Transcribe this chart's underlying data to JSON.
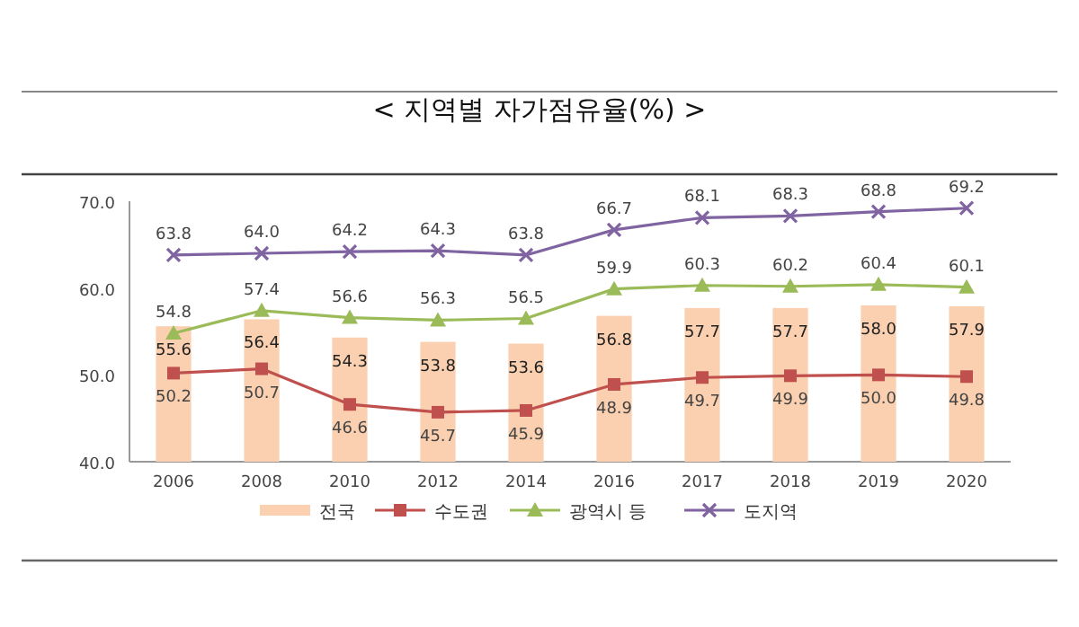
{
  "chart_data": {
    "type": "bar",
    "title": "<  지역별  자가점유율(%)  >",
    "categories": [
      "2006",
      "2008",
      "2010",
      "2012",
      "2014",
      "2016",
      "2017",
      "2018",
      "2019",
      "2020"
    ],
    "series": [
      {
        "name": "전국",
        "color": "#fad0b0",
        "values": [
          55.6,
          56.4,
          54.3,
          53.8,
          53.6,
          56.8,
          57.7,
          57.7,
          58.0,
          57.9
        ],
        "value_labels": [
          "55.6",
          "56.4",
          "54.3",
          "53.8",
          "53.6",
          "56.8",
          "57.7",
          "57.7",
          "58.0",
          "57.9"
        ]
      },
      {
        "name": "수도권",
        "type": "line",
        "color": "#c0504d",
        "marker": "square",
        "values": [
          50.2,
          50.7,
          46.6,
          45.7,
          45.9,
          48.9,
          49.7,
          49.9,
          50.0,
          49.8
        ],
        "value_labels": [
          "50.2",
          "50.7",
          "46.6",
          "45.7",
          "45.9",
          "48.9",
          "49.7",
          "49.9",
          "50.0",
          "49.8"
        ]
      },
      {
        "name": "광역시 등",
        "type": "line",
        "color": "#9bbb59",
        "marker": "triangle",
        "values": [
          54.8,
          57.4,
          56.6,
          56.3,
          56.5,
          59.9,
          60.3,
          60.2,
          60.4,
          60.1
        ],
        "value_labels": [
          "54.8",
          "57.4",
          "56.6",
          "56.3",
          "56.5",
          "59.9",
          "60.3",
          "60.2",
          "60.4",
          "60.1"
        ]
      },
      {
        "name": "도지역",
        "type": "line",
        "color": "#8064a2",
        "marker": "cross",
        "values": [
          63.8,
          64.0,
          64.2,
          64.3,
          63.8,
          66.7,
          68.1,
          68.3,
          68.8,
          69.2
        ],
        "value_labels": [
          "63.8",
          "64.0",
          "64.2",
          "64.3",
          "63.8",
          "66.7",
          "68.1",
          "68.3",
          "68.8",
          "69.2"
        ]
      }
    ],
    "ylim": [
      40,
      70
    ],
    "yticks": [
      {
        "value": 40,
        "label": "40.0"
      },
      {
        "value": 50,
        "label": "50.0"
      },
      {
        "value": 60,
        "label": "60.0"
      },
      {
        "value": 70,
        "label": "70.0"
      }
    ],
    "grid": false,
    "legend": "bottom"
  }
}
